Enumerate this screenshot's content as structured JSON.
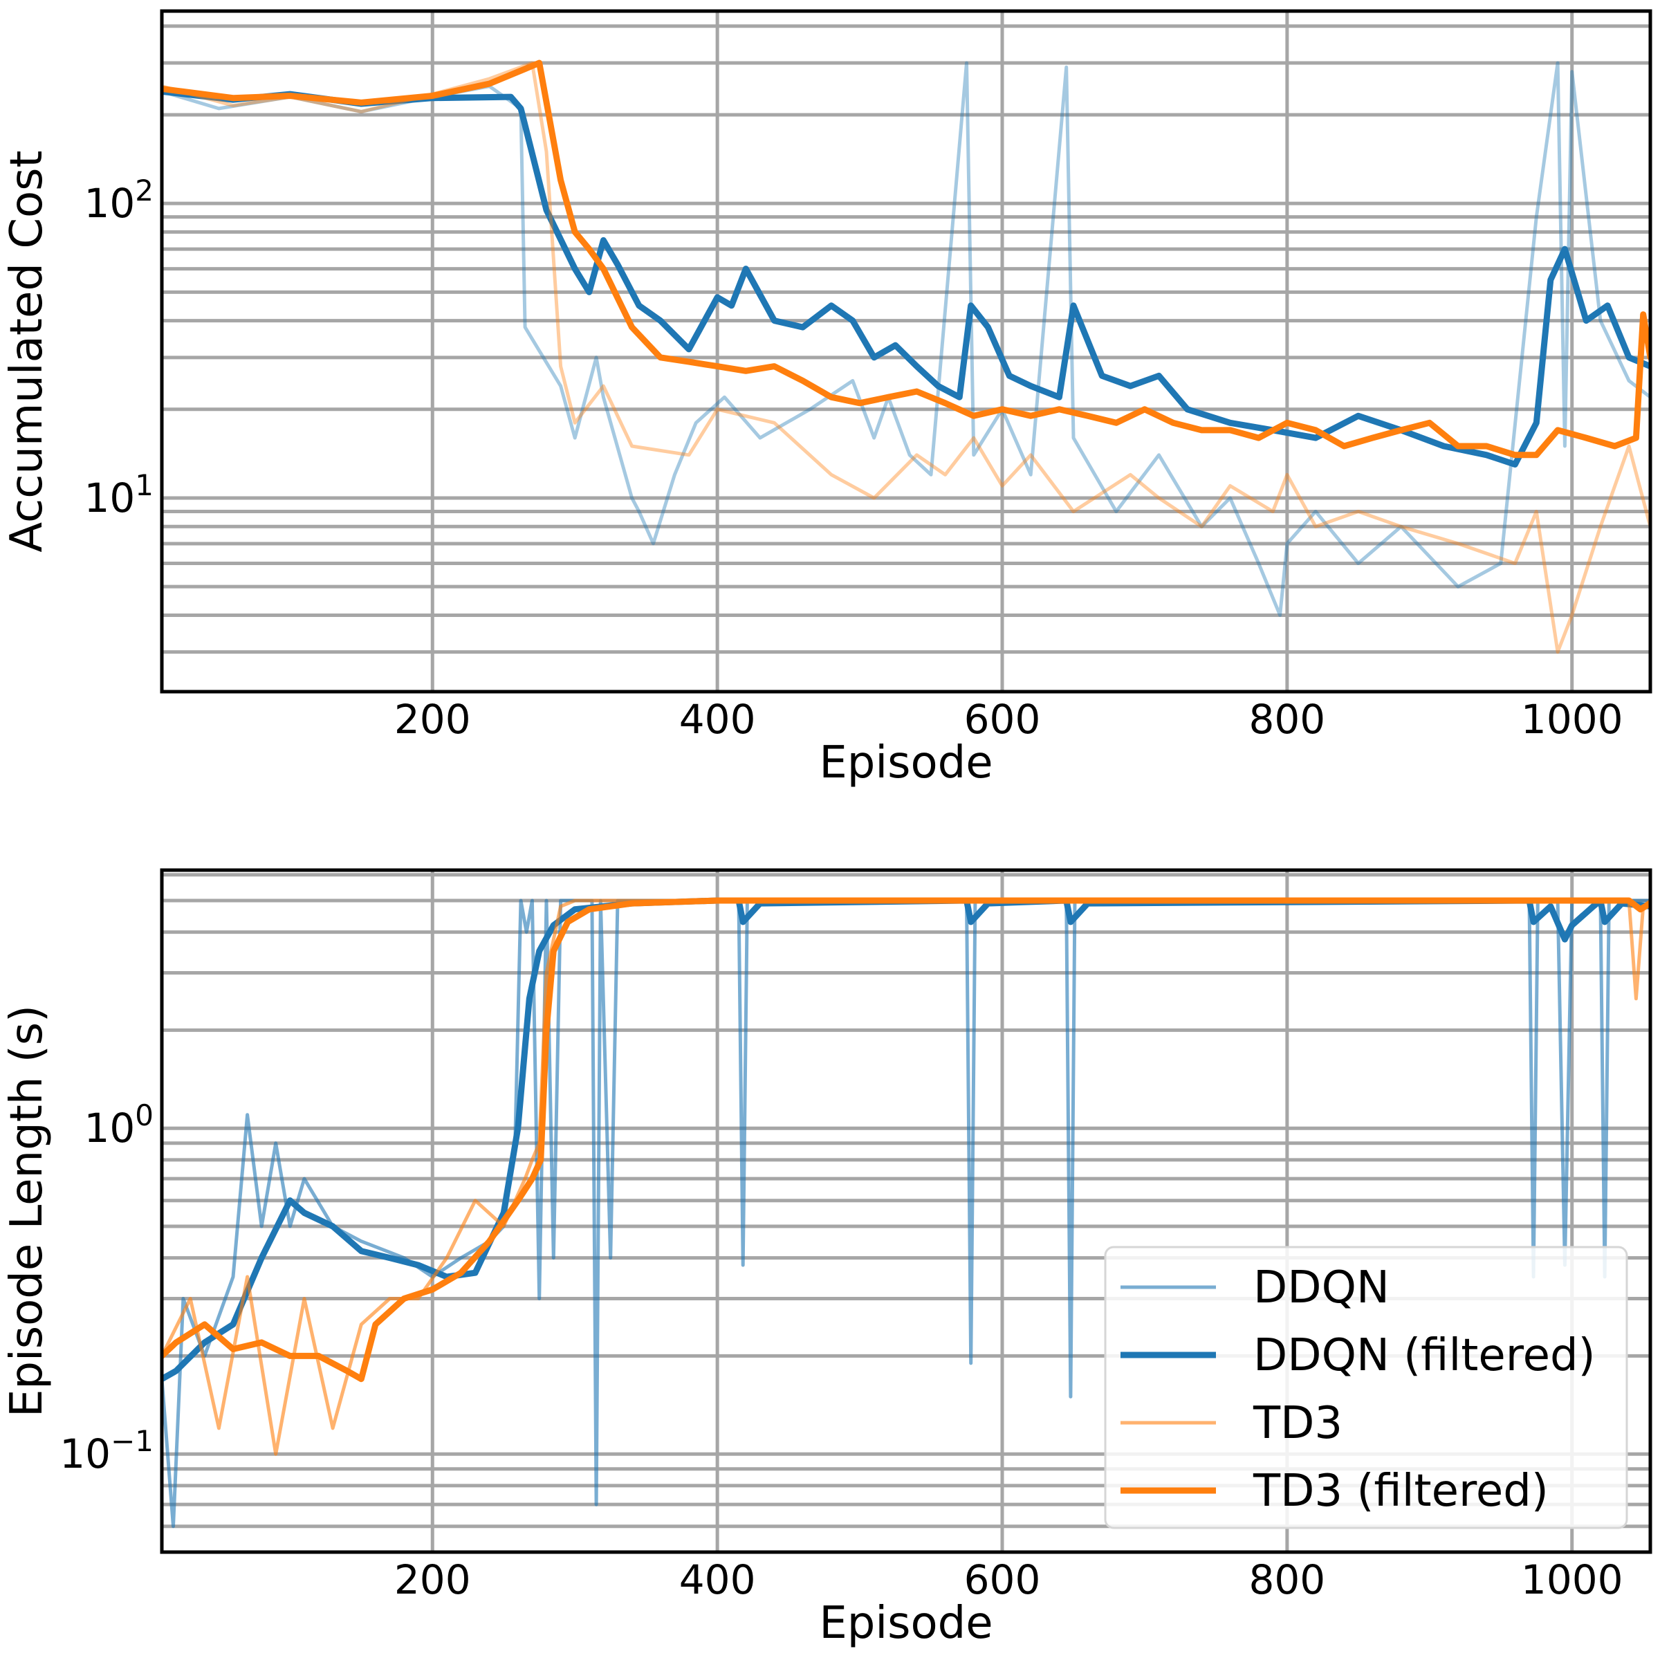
{
  "chart_data": [
    {
      "type": "line",
      "title": "",
      "xlabel": "Episode",
      "ylabel": "Accumulated Cost",
      "yscale": "log",
      "xlim": [
        10,
        1055
      ],
      "ylim": [
        2.2,
        450
      ],
      "grid": true,
      "xticks": [
        200,
        400,
        600,
        800,
        1000
      ],
      "xtick_labels": [
        "200",
        "400",
        "600",
        "800",
        "1000"
      ],
      "yticks": [
        10,
        100
      ],
      "ytick_labels": [
        {
          "base": "10",
          "exp": "1"
        },
        {
          "base": "10",
          "exp": "2"
        }
      ],
      "series": [
        {
          "name": "DDQN",
          "color": "#1f77b4",
          "alpha": 0.4,
          "style": "raw",
          "x": [
            10,
            50,
            100,
            150,
            200,
            240,
            262,
            265,
            290,
            300,
            315,
            320,
            340,
            345,
            355,
            370,
            385,
            405,
            430,
            465,
            495,
            510,
            520,
            535,
            550,
            575,
            580,
            600,
            620,
            645,
            650,
            680,
            710,
            740,
            760,
            780,
            795,
            800,
            820,
            850,
            880,
            920,
            950,
            975,
            990,
            995,
            1000,
            1020,
            1040,
            1055
          ],
          "y": [
            240,
            210,
            230,
            205,
            230,
            250,
            210,
            38,
            24,
            16,
            30,
            22,
            10,
            9,
            7,
            12,
            18,
            22,
            16,
            20,
            25,
            16,
            22,
            14,
            12,
            300,
            14,
            20,
            12,
            290,
            16,
            9,
            14,
            8,
            10,
            6,
            4,
            7,
            9,
            6,
            8,
            5,
            6,
            90,
            300,
            15,
            280,
            40,
            25,
            22
          ]
        },
        {
          "name": "DDQN (filtered)",
          "color": "#1f77b4",
          "alpha": 1,
          "style": "filtered",
          "x": [
            10,
            60,
            100,
            150,
            200,
            255,
            262,
            280,
            300,
            310,
            320,
            330,
            345,
            360,
            380,
            400,
            410,
            420,
            440,
            460,
            480,
            495,
            510,
            525,
            540,
            555,
            570,
            578,
            590,
            605,
            620,
            640,
            650,
            670,
            690,
            710,
            730,
            760,
            790,
            820,
            850,
            880,
            910,
            940,
            960,
            975,
            985,
            995,
            1010,
            1025,
            1040,
            1055
          ],
          "y": [
            240,
            225,
            235,
            218,
            228,
            230,
            210,
            95,
            60,
            50,
            75,
            62,
            45,
            40,
            32,
            48,
            45,
            60,
            40,
            38,
            45,
            40,
            30,
            33,
            28,
            24,
            22,
            45,
            38,
            26,
            24,
            22,
            45,
            26,
            24,
            26,
            20,
            18,
            17,
            16,
            19,
            17,
            15,
            14,
            13,
            18,
            55,
            70,
            40,
            45,
            30,
            28
          ]
        },
        {
          "name": "TD3",
          "color": "#ff7f0e",
          "alpha": 0.4,
          "style": "raw",
          "x": [
            10,
            60,
            100,
            150,
            200,
            240,
            270,
            280,
            290,
            300,
            320,
            340,
            380,
            400,
            440,
            480,
            510,
            540,
            560,
            580,
            600,
            620,
            650,
            690,
            710,
            740,
            760,
            790,
            800,
            820,
            850,
            880,
            920,
            960,
            975,
            990,
            1000,
            1020,
            1040,
            1055
          ],
          "y": [
            250,
            215,
            230,
            205,
            235,
            265,
            300,
            150,
            28,
            18,
            24,
            15,
            14,
            20,
            18,
            12,
            10,
            14,
            12,
            16,
            11,
            14,
            9,
            12,
            10,
            8,
            11,
            9,
            12,
            8,
            9,
            8,
            7,
            6,
            9,
            3,
            4,
            8,
            15,
            8
          ]
        },
        {
          "name": "TD3 (filtered)",
          "color": "#ff7f0e",
          "alpha": 1,
          "style": "filtered",
          "x": [
            10,
            60,
            100,
            150,
            200,
            240,
            275,
            290,
            300,
            310,
            320,
            340,
            360,
            380,
            400,
            420,
            440,
            460,
            480,
            500,
            520,
            540,
            560,
            580,
            600,
            620,
            640,
            660,
            680,
            700,
            720,
            740,
            760,
            780,
            800,
            820,
            840,
            860,
            880,
            900,
            920,
            940,
            960,
            975,
            990,
            1010,
            1030,
            1045,
            1050,
            1055
          ],
          "y": [
            245,
            228,
            232,
            220,
            232,
            255,
            300,
            120,
            80,
            70,
            60,
            38,
            30,
            29,
            28,
            27,
            28,
            25,
            22,
            21,
            22,
            23,
            21,
            19,
            20,
            19,
            20,
            19,
            18,
            20,
            18,
            17,
            17,
            16,
            18,
            17,
            15,
            16,
            17,
            18,
            15,
            15,
            14,
            14,
            17,
            16,
            15,
            16,
            42,
            30
          ]
        }
      ]
    },
    {
      "type": "line",
      "title": "",
      "xlabel": "Episode",
      "ylabel": "Episode Length (s)",
      "yscale": "log",
      "xlim": [
        10,
        1055
      ],
      "ylim": [
        0.05,
        6.2
      ],
      "grid": true,
      "xticks": [
        200,
        400,
        600,
        800,
        1000
      ],
      "xtick_labels": [
        "200",
        "400",
        "600",
        "800",
        "1000"
      ],
      "yticks": [
        0.1,
        1
      ],
      "ytick_labels": [
        {
          "base": "10",
          "exp": "−1"
        },
        {
          "base": "10",
          "exp": "0"
        }
      ],
      "legend_position": "lower-right",
      "series": [
        {
          "name": "DDQN",
          "color": "#1f77b4",
          "alpha": 0.6,
          "style": "raw",
          "x": [
            10,
            18,
            25,
            40,
            60,
            70,
            80,
            90,
            100,
            110,
            130,
            150,
            180,
            200,
            220,
            240,
            250,
            258,
            262,
            266,
            270,
            275,
            280,
            285,
            290,
            300,
            312,
            315,
            318,
            325,
            330,
            340,
            415,
            418,
            421,
            575,
            578,
            581,
            645,
            648,
            651,
            970,
            973,
            976,
            990,
            995,
            1000,
            1020,
            1023,
            1026,
            1040,
            1055
          ],
          "y": [
            0.17,
            0.06,
            0.3,
            0.2,
            0.35,
            1.1,
            0.5,
            0.9,
            0.5,
            0.7,
            0.5,
            0.45,
            0.4,
            0.35,
            0.4,
            0.45,
            0.5,
            0.9,
            5.0,
            4.0,
            5.0,
            0.3,
            5.0,
            0.4,
            5.0,
            5.0,
            5.0,
            0.07,
            5.0,
            0.4,
            5.0,
            5.0,
            5.0,
            0.38,
            5.0,
            5.0,
            0.19,
            5.0,
            5.0,
            0.15,
            5.0,
            5.0,
            0.35,
            5.0,
            5.0,
            0.38,
            5.0,
            5.0,
            0.35,
            5.0,
            5.0,
            5.0
          ]
        },
        {
          "name": "DDQN (filtered)",
          "color": "#1f77b4",
          "alpha": 1,
          "style": "filtered",
          "x": [
            10,
            20,
            40,
            60,
            80,
            100,
            110,
            130,
            150,
            170,
            190,
            210,
            230,
            250,
            260,
            268,
            275,
            285,
            300,
            340,
            400,
            415,
            418,
            430,
            575,
            578,
            590,
            645,
            648,
            660,
            970,
            973,
            985,
            995,
            1000,
            1015,
            1020,
            1023,
            1035,
            1055
          ],
          "y": [
            0.17,
            0.18,
            0.22,
            0.25,
            0.4,
            0.6,
            0.55,
            0.5,
            0.42,
            0.4,
            0.38,
            0.35,
            0.36,
            0.55,
            1.0,
            2.5,
            3.5,
            4.2,
            4.7,
            4.9,
            5.0,
            5.0,
            4.3,
            4.9,
            5.0,
            4.3,
            4.9,
            5.0,
            4.3,
            4.9,
            5.0,
            4.3,
            4.8,
            3.8,
            4.2,
            4.8,
            5.0,
            4.3,
            4.9,
            4.8
          ]
        },
        {
          "name": "TD3",
          "color": "#ff7f0e",
          "alpha": 0.6,
          "style": "raw",
          "x": [
            10,
            30,
            50,
            70,
            90,
            110,
            130,
            150,
            170,
            190,
            210,
            230,
            250,
            265,
            270,
            275,
            280,
            290,
            300,
            320,
            400,
            1000,
            1040,
            1045,
            1050,
            1055
          ],
          "y": [
            0.2,
            0.3,
            0.12,
            0.35,
            0.1,
            0.3,
            0.12,
            0.25,
            0.3,
            0.3,
            0.4,
            0.6,
            0.5,
            0.7,
            0.8,
            0.9,
            3.0,
            4.8,
            5.0,
            5.0,
            5.0,
            5.0,
            5.0,
            2.5,
            4.8,
            5.0
          ]
        },
        {
          "name": "TD3 (filtered)",
          "color": "#ff7f0e",
          "alpha": 1,
          "style": "filtered",
          "x": [
            10,
            20,
            40,
            60,
            80,
            100,
            120,
            140,
            150,
            160,
            180,
            200,
            220,
            240,
            260,
            270,
            276,
            280,
            285,
            295,
            310,
            340,
            400,
            1040,
            1048,
            1055
          ],
          "y": [
            0.2,
            0.22,
            0.25,
            0.21,
            0.22,
            0.2,
            0.2,
            0.18,
            0.17,
            0.25,
            0.3,
            0.32,
            0.36,
            0.45,
            0.6,
            0.7,
            0.8,
            2.0,
            3.5,
            4.3,
            4.7,
            4.9,
            5.0,
            5.0,
            4.7,
            4.9
          ]
        }
      ],
      "legend": [
        "DDQN",
        "DDQN (filtered)",
        "TD3",
        "TD3 (filtered)"
      ]
    }
  ]
}
